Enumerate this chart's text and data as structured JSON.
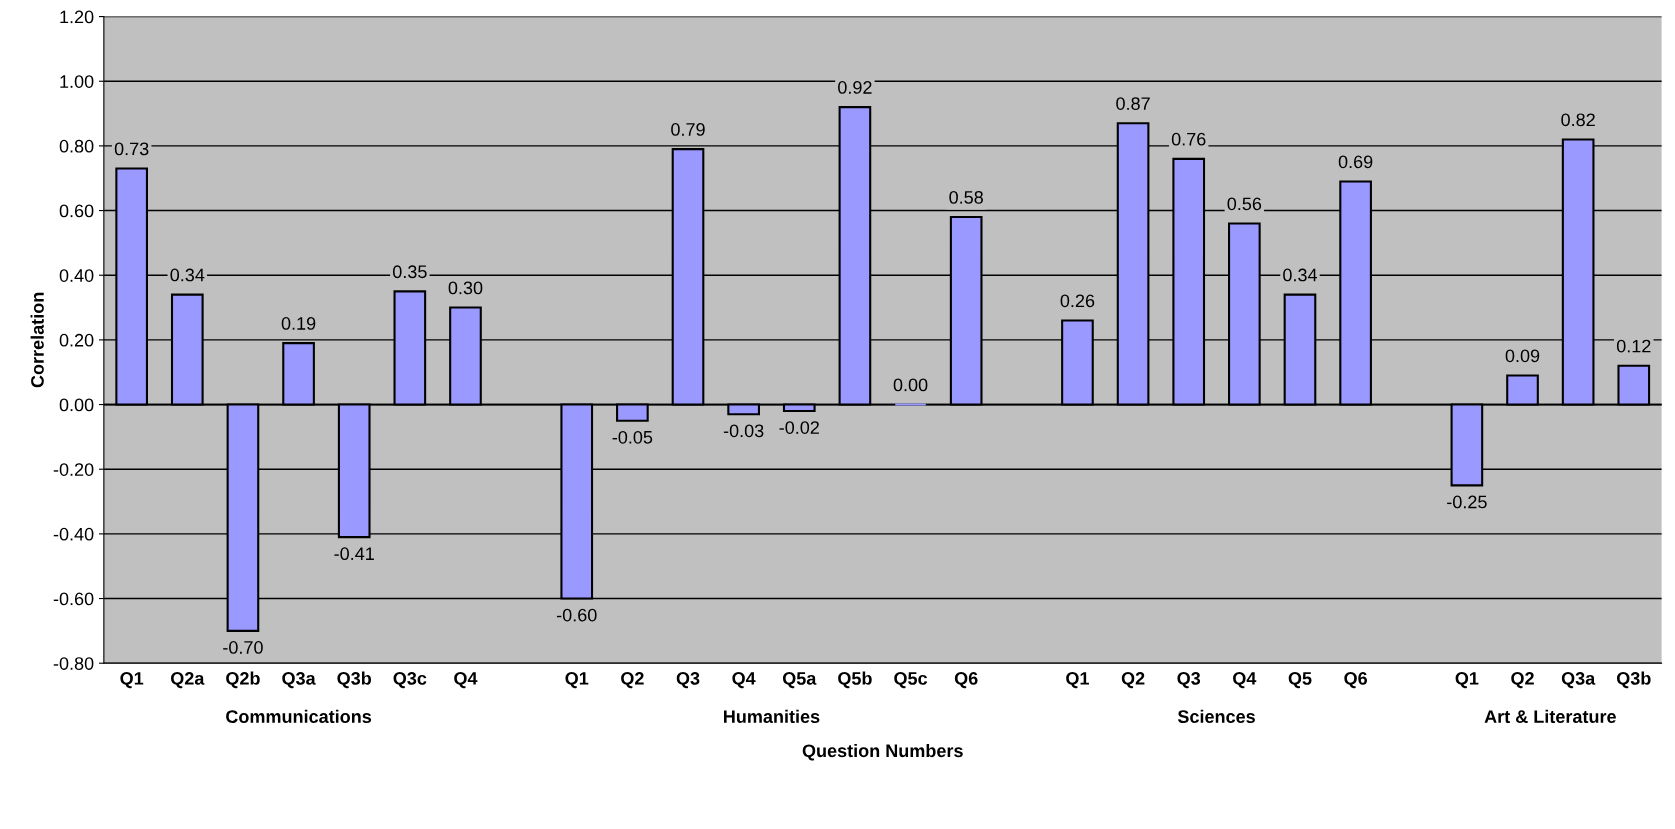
{
  "chart_data": {
    "type": "bar",
    "xlabel": "Question Numbers",
    "ylabel": "Correlation",
    "categories": [
      "Q1",
      "Q2a",
      "Q2b",
      "Q3a",
      "Q3b",
      "Q3c",
      "Q4",
      null,
      "Q1",
      "Q2",
      "Q3",
      "Q4",
      "Q5a",
      "Q5b",
      "Q5c",
      "Q6",
      null,
      "Q1",
      "Q2",
      "Q3",
      "Q4",
      "Q5",
      "Q6",
      null,
      "Q1",
      "Q2",
      "Q3a",
      "Q3b"
    ],
    "values": [
      0.73,
      0.34,
      -0.7,
      0.19,
      -0.41,
      0.35,
      0.3,
      null,
      -0.6,
      -0.05,
      0.79,
      -0.03,
      -0.02,
      0.92,
      0.0,
      0.58,
      null,
      0.26,
      0.87,
      0.76,
      0.56,
      0.34,
      0.69,
      null,
      -0.25,
      0.09,
      0.82,
      0.12
    ],
    "value_labels": [
      "0.73",
      "0.34",
      "-0.70",
      "0.19",
      "-0.41",
      "0.35",
      "0.30",
      null,
      "-0.60",
      "-0.05",
      "0.79",
      "-0.03",
      "-0.02",
      "0.92",
      "0.00",
      "0.58",
      null,
      "0.26",
      "0.87",
      "0.76",
      "0.56",
      "0.34",
      "0.69",
      null,
      "-0.25",
      "0.09",
      "0.82",
      "0.12"
    ],
    "color": "#9999ff",
    "annotations": [
      "Communications",
      "Humanities",
      "Sciences",
      "Art & Literature"
    ],
    "ylim": [
      -0.8,
      1.2
    ],
    "yticks": [
      {
        "value": -0.8,
        "label": "-0.80"
      },
      {
        "value": -0.6,
        "label": "-0.60"
      },
      {
        "value": -0.4,
        "label": "-0.40"
      },
      {
        "value": -0.2,
        "label": "-0.20"
      },
      {
        "value": 0,
        "label": "0.00"
      },
      {
        "value": 0.2,
        "label": "0.20"
      },
      {
        "value": 0.4,
        "label": "0.40"
      },
      {
        "value": 0.6,
        "label": "0.60"
      },
      {
        "value": 0.8,
        "label": "0.80"
      },
      {
        "value": 1.0,
        "label": "1.00"
      },
      {
        "value": 1.2,
        "label": "1.20"
      }
    ],
    "grid": "y",
    "legend": false
  }
}
